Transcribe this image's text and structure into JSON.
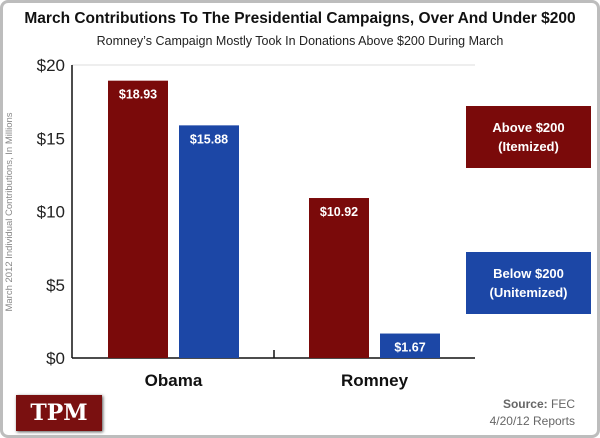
{
  "chart_data": {
    "type": "bar",
    "title": "March Contributions To The Presidential Campaigns, Over And Under $200",
    "subtitle": "Romney’s Campaign Mostly Took In Donations Above $200 During March",
    "ylabel": "March 2012 Individual Contributions, In Millions",
    "xlabel": "",
    "categories": [
      "Obama",
      "Romney"
    ],
    "ylim": [
      0,
      20
    ],
    "yticks": [
      0,
      5,
      10,
      15,
      20
    ],
    "ytick_labels": [
      "$0",
      "$5",
      "$10",
      "$15",
      "$20"
    ],
    "legend_position": "right",
    "series": [
      {
        "name": "Above $200\n(Itemized)",
        "color": "#7a0a0a",
        "values": [
          18.93,
          10.92
        ],
        "labels": [
          "$18.93",
          "$10.92"
        ]
      },
      {
        "name": "Below $200\n(Unitemized)",
        "color": "#1c47a6",
        "values": [
          15.88,
          1.67
        ],
        "labels": [
          "$15.88",
          "$1.67"
        ]
      }
    ]
  },
  "logo": "TPM",
  "source": {
    "label": "Source:",
    "value": "FEC",
    "date": "4/20/12 Reports"
  }
}
